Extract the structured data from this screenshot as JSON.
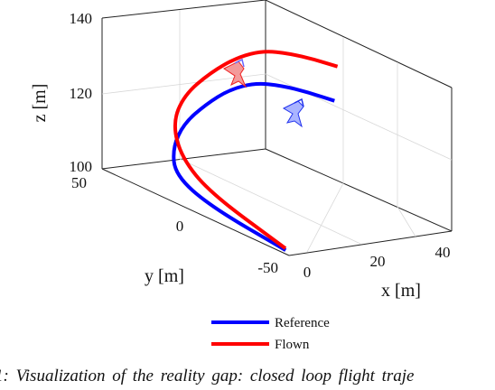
{
  "chart_data": {
    "type": "line",
    "projection": "3d",
    "xlabel": "x [m]",
    "ylabel": "y [m]",
    "zlabel": "z [m]",
    "xticks": [
      "0",
      "20",
      "40"
    ],
    "yticks": [
      "50",
      "0",
      "-50"
    ],
    "zticks": [
      "100",
      "120",
      "140"
    ],
    "xlim": [
      -5,
      50
    ],
    "ylim": [
      -60,
      60
    ],
    "zlim": [
      100,
      140
    ],
    "grid": true,
    "legend": "bottom-center",
    "series": [
      {
        "name": "Reference",
        "color": "#0000ff",
        "x": [
          42,
          41,
          40,
          38,
          34,
          28,
          20,
          12,
          4,
          0,
          -3
        ],
        "y": [
          0,
          15,
          30,
          43,
          52,
          56,
          55,
          47,
          30,
          0,
          -54
        ],
        "z": [
          124,
          123.5,
          122.5,
          121,
          118,
          114,
          110,
          106,
          103,
          101,
          100
        ]
      },
      {
        "name": "Flown",
        "color": "#ff0000",
        "x": [
          43,
          42,
          41,
          39,
          35,
          28,
          19,
          11,
          5,
          1,
          -2
        ],
        "y": [
          0,
          13,
          27,
          40,
          49,
          53,
          53,
          45,
          28,
          2,
          -52
        ],
        "z": [
          133,
          132.5,
          131.5,
          130,
          127,
          123,
          118,
          113,
          108,
          104,
          100
        ]
      }
    ]
  },
  "caption": "1: Visualization of the reality gap: closed loop flight traje"
}
